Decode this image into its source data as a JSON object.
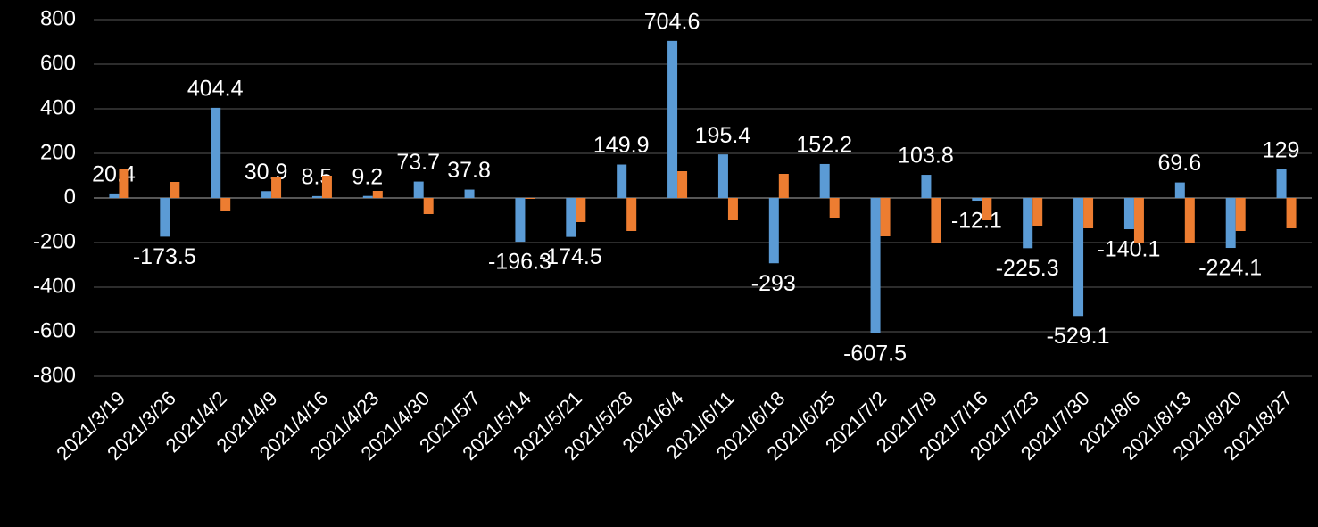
{
  "chart_data": {
    "type": "bar",
    "categories": [
      "2021/3/19",
      "2021/3/26",
      "2021/4/2",
      "2021/4/9",
      "2021/4/16",
      "2021/4/23",
      "2021/4/30",
      "2021/5/7",
      "2021/5/14",
      "2021/5/21",
      "2021/5/28",
      "2021/6/4",
      "2021/6/11",
      "2021/6/18",
      "2021/6/25",
      "2021/7/2",
      "2021/7/9",
      "2021/7/16",
      "2021/7/23",
      "2021/7/30",
      "2021/8/6",
      "2021/8/13",
      "2021/8/20",
      "2021/8/27"
    ],
    "series": [
      {
        "color": "#5b9bd5",
        "show_labels": true,
        "values": [
          20.4,
          -173.5,
          404.4,
          30.9,
          8.5,
          9.2,
          73.7,
          37.8,
          -196.3,
          -174.5,
          149.9,
          704.6,
          195.4,
          -293,
          152.2,
          -607.5,
          103.8,
          -12.1,
          -225.3,
          -529.1,
          -140.1,
          69.6,
          -224.1,
          129
        ]
      },
      {
        "color": "#ed7d31",
        "show_labels": false,
        "values": [
          128,
          72,
          -60,
          92,
          100,
          32,
          -72,
          0,
          -4,
          -108,
          -148,
          120,
          -100,
          108,
          -88,
          -172,
          -200,
          -100,
          -124,
          -136,
          -200,
          -200,
          -148,
          -136
        ]
      }
    ],
    "ylim": [
      -800,
      800
    ],
    "yticks": [
      -800,
      -600,
      -400,
      -200,
      0,
      200,
      400,
      600,
      800
    ],
    "grid": true
  }
}
